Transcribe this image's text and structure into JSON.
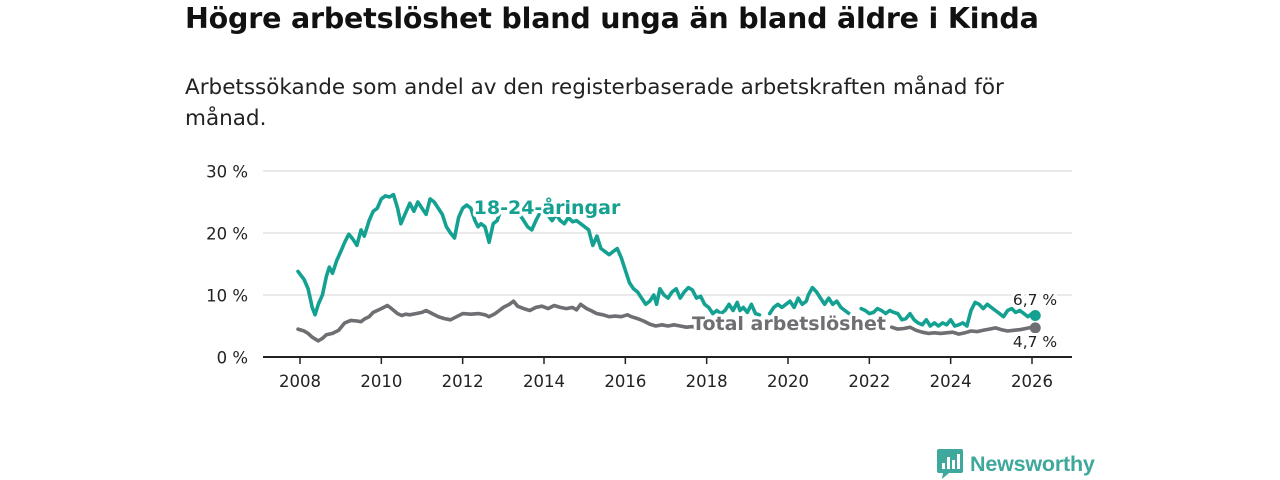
{
  "title": "Högre arbetslöshet bland unga än bland äldre i Kinda",
  "subtitle": "Arbetssökande som andel av den registerbaserade arbetskraften månad för månad.",
  "logo": {
    "text": "Newsworthy",
    "icon": "newsworthy-logo-icon"
  },
  "colors": {
    "youth": "#15a192",
    "total": "#6e6e73",
    "grid": "#dddddd",
    "axis": "#222222",
    "logo": "#3ea89c"
  },
  "chart_data": {
    "type": "line",
    "title": "Högre arbetslöshet bland unga än bland äldre i Kinda",
    "subtitle": "Arbetssökande som andel av den registerbaserade arbetskraften månad för månad.",
    "xlabel": "",
    "ylabel": "",
    "xlim": [
      2007.6,
      2026.6
    ],
    "ylim": [
      0,
      30
    ],
    "x_ticks": [
      2008,
      2010,
      2012,
      2014,
      2016,
      2018,
      2020,
      2022,
      2024,
      2026
    ],
    "x_tick_labels": [
      "2008",
      "2010",
      "2012",
      "2014",
      "2016",
      "2018",
      "2020",
      "2022",
      "2024",
      "2026"
    ],
    "y_ticks": [
      0,
      10,
      20,
      30
    ],
    "y_tick_labels": [
      "0 %",
      "10 %",
      "20 %",
      "30 %"
    ],
    "grid": true,
    "series": [
      {
        "name": "18-24-åringar",
        "label": "18-24-åringar",
        "end_label": "6,7 %",
        "end_value": 6.7,
        "points": [
          [
            2007.95,
            13.8
          ],
          [
            2008.1,
            12.5
          ],
          [
            2008.2,
            11.0
          ],
          [
            2008.3,
            8.0
          ],
          [
            2008.37,
            6.8
          ],
          [
            2008.45,
            8.5
          ],
          [
            2008.55,
            10.0
          ],
          [
            2008.65,
            13.0
          ],
          [
            2008.72,
            14.5
          ],
          [
            2008.8,
            13.5
          ],
          [
            2008.9,
            15.5
          ],
          [
            2009.0,
            17.0
          ],
          [
            2009.1,
            18.5
          ],
          [
            2009.2,
            19.8
          ],
          [
            2009.3,
            19.0
          ],
          [
            2009.4,
            18.0
          ],
          [
            2009.5,
            20.5
          ],
          [
            2009.58,
            19.5
          ],
          [
            2009.7,
            22.0
          ],
          [
            2009.8,
            23.5
          ],
          [
            2009.9,
            24.0
          ],
          [
            2010.0,
            25.5
          ],
          [
            2010.1,
            26.0
          ],
          [
            2010.2,
            25.8
          ],
          [
            2010.3,
            26.2
          ],
          [
            2010.4,
            24.0
          ],
          [
            2010.48,
            21.5
          ],
          [
            2010.58,
            23.0
          ],
          [
            2010.7,
            24.8
          ],
          [
            2010.8,
            23.5
          ],
          [
            2010.9,
            25.0
          ],
          [
            2011.0,
            24.0
          ],
          [
            2011.1,
            23.0
          ],
          [
            2011.2,
            25.5
          ],
          [
            2011.3,
            25.0
          ],
          [
            2011.4,
            24.0
          ],
          [
            2011.5,
            23.0
          ],
          [
            2011.6,
            21.0
          ],
          [
            2011.7,
            20.0
          ],
          [
            2011.8,
            19.2
          ],
          [
            2011.9,
            22.5
          ],
          [
            2012.0,
            24.0
          ],
          [
            2012.1,
            24.5
          ],
          [
            2012.2,
            24.0
          ],
          [
            2012.3,
            22.0
          ],
          [
            2012.38,
            21.0
          ],
          [
            2012.45,
            21.5
          ],
          [
            2012.55,
            21.0
          ],
          [
            2012.65,
            18.5
          ],
          [
            2012.75,
            21.5
          ],
          [
            2012.85,
            22.0
          ],
          [
            2012.9,
            23.0
          ]
        ],
        "points_2": [
          [
            2013.35,
            23.5
          ],
          [
            2013.5,
            22.0
          ],
          [
            2013.6,
            21.0
          ],
          [
            2013.7,
            20.5
          ],
          [
            2013.8,
            22.0
          ],
          [
            2013.88,
            23.0
          ]
        ],
        "points_3": [
          [
            2014.1,
            22.8
          ],
          [
            2014.2,
            22.0
          ],
          [
            2014.3,
            23.0
          ],
          [
            2014.4,
            22.0
          ],
          [
            2014.5,
            21.5
          ],
          [
            2014.6,
            22.5
          ],
          [
            2014.7,
            21.8
          ],
          [
            2014.8,
            22.0
          ],
          [
            2014.9,
            21.5
          ],
          [
            2015.0,
            21.0
          ],
          [
            2015.1,
            20.5
          ],
          [
            2015.2,
            18.0
          ],
          [
            2015.3,
            19.5
          ],
          [
            2015.4,
            17.5
          ],
          [
            2015.5,
            17.0
          ],
          [
            2015.6,
            16.5
          ],
          [
            2015.7,
            17.0
          ],
          [
            2015.8,
            17.5
          ],
          [
            2015.9,
            16.0
          ],
          [
            2016.0,
            14.0
          ],
          [
            2016.1,
            12.0
          ],
          [
            2016.2,
            11.0
          ],
          [
            2016.3,
            10.5
          ],
          [
            2016.4,
            9.5
          ],
          [
            2016.5,
            8.5
          ],
          [
            2016.6,
            9.0
          ],
          [
            2016.7,
            10.0
          ],
          [
            2016.77,
            8.5
          ],
          [
            2016.85,
            11.0
          ],
          [
            2016.95,
            10.0
          ],
          [
            2017.05,
            9.5
          ],
          [
            2017.15,
            10.5
          ],
          [
            2017.25,
            11.0
          ],
          [
            2017.35,
            9.5
          ],
          [
            2017.45,
            10.5
          ],
          [
            2017.55,
            11.2
          ],
          [
            2017.65,
            10.8
          ],
          [
            2017.75,
            9.5
          ],
          [
            2017.85,
            9.8
          ],
          [
            2017.95,
            8.5
          ],
          [
            2018.05,
            8.0
          ],
          [
            2018.15,
            7.0
          ],
          [
            2018.25,
            7.5
          ],
          [
            2018.35,
            7.0
          ],
          [
            2018.45,
            7.5
          ],
          [
            2018.55,
            8.5
          ],
          [
            2018.65,
            7.5
          ],
          [
            2018.75,
            8.8
          ],
          [
            2018.82,
            7.5
          ],
          [
            2018.9,
            8.0
          ],
          [
            2019.0,
            7.2
          ],
          [
            2019.1,
            8.5
          ],
          [
            2019.2,
            7.0
          ],
          [
            2019.3,
            6.8
          ]
        ],
        "points_4": [
          [
            2019.55,
            7.0
          ],
          [
            2019.65,
            8.0
          ],
          [
            2019.75,
            8.5
          ],
          [
            2019.85,
            8.0
          ],
          [
            2019.95,
            8.5
          ],
          [
            2020.05,
            9.0
          ],
          [
            2020.15,
            8.0
          ],
          [
            2020.25,
            9.5
          ],
          [
            2020.35,
            8.5
          ],
          [
            2020.45,
            9.0
          ],
          [
            2020.5,
            10.0
          ],
          [
            2020.6,
            11.2
          ],
          [
            2020.7,
            10.5
          ],
          [
            2020.8,
            9.5
          ],
          [
            2020.9,
            8.5
          ],
          [
            2021.0,
            9.5
          ],
          [
            2021.1,
            8.5
          ],
          [
            2021.2,
            9.0
          ],
          [
            2021.3,
            8.0
          ],
          [
            2021.4,
            7.5
          ],
          [
            2021.5,
            7.0
          ]
        ],
        "points_5": [
          [
            2021.8,
            7.8
          ],
          [
            2021.9,
            7.5
          ],
          [
            2022.0,
            7.0
          ],
          [
            2022.1,
            7.2
          ],
          [
            2022.2,
            7.8
          ],
          [
            2022.3,
            7.5
          ],
          [
            2022.4,
            7.0
          ],
          [
            2022.5,
            7.5
          ],
          [
            2022.6,
            7.2
          ],
          [
            2022.7,
            7.0
          ],
          [
            2022.8,
            6.0
          ],
          [
            2022.9,
            6.2
          ],
          [
            2023.0,
            7.0
          ],
          [
            2023.1,
            6.0
          ],
          [
            2023.2,
            5.5
          ],
          [
            2023.3,
            5.2
          ],
          [
            2023.4,
            6.0
          ],
          [
            2023.5,
            5.0
          ],
          [
            2023.6,
            5.5
          ],
          [
            2023.7,
            5.0
          ],
          [
            2023.8,
            5.5
          ],
          [
            2023.9,
            5.2
          ],
          [
            2024.0,
            6.0
          ],
          [
            2024.1,
            5.0
          ],
          [
            2024.2,
            5.2
          ],
          [
            2024.3,
            5.5
          ],
          [
            2024.4,
            5.0
          ],
          [
            2024.5,
            7.5
          ],
          [
            2024.6,
            8.8
          ],
          [
            2024.7,
            8.5
          ],
          [
            2024.8,
            7.8
          ],
          [
            2024.9,
            8.5
          ],
          [
            2025.0,
            8.0
          ],
          [
            2025.1,
            7.5
          ],
          [
            2025.2,
            7.0
          ],
          [
            2025.3,
            6.5
          ],
          [
            2025.4,
            7.5
          ],
          [
            2025.5,
            7.8
          ],
          [
            2025.6,
            7.2
          ],
          [
            2025.7,
            7.5
          ],
          [
            2025.8,
            7.0
          ],
          [
            2025.9,
            6.5
          ],
          [
            2026.0,
            7.0
          ],
          [
            2026.08,
            6.7
          ]
        ]
      },
      {
        "name": "Total arbetslöshet",
        "label": "Total arbetslöshet",
        "end_label": "4,7 %",
        "end_value": 4.7,
        "points": [
          [
            2007.95,
            4.5
          ],
          [
            2008.1,
            4.2
          ],
          [
            2008.2,
            3.8
          ],
          [
            2008.3,
            3.2
          ],
          [
            2008.45,
            2.6
          ],
          [
            2008.55,
            3.0
          ],
          [
            2008.65,
            3.6
          ],
          [
            2008.8,
            3.8
          ],
          [
            2008.95,
            4.3
          ],
          [
            2009.1,
            5.5
          ],
          [
            2009.25,
            5.9
          ],
          [
            2009.4,
            5.8
          ],
          [
            2009.5,
            5.7
          ],
          [
            2009.6,
            6.2
          ],
          [
            2009.7,
            6.5
          ],
          [
            2009.8,
            7.2
          ],
          [
            2009.9,
            7.5
          ],
          [
            2010.0,
            7.8
          ],
          [
            2010.15,
            8.3
          ],
          [
            2010.25,
            7.8
          ],
          [
            2010.4,
            7.0
          ],
          [
            2010.5,
            6.7
          ],
          [
            2010.6,
            6.9
          ],
          [
            2010.7,
            6.8
          ],
          [
            2010.85,
            7.0
          ],
          [
            2011.0,
            7.2
          ],
          [
            2011.1,
            7.5
          ],
          [
            2011.25,
            7.0
          ],
          [
            2011.4,
            6.5
          ],
          [
            2011.55,
            6.2
          ],
          [
            2011.7,
            6.0
          ],
          [
            2011.85,
            6.5
          ],
          [
            2012.0,
            7.0
          ],
          [
            2012.2,
            6.9
          ],
          [
            2012.4,
            7.0
          ],
          [
            2012.55,
            6.8
          ],
          [
            2012.65,
            6.5
          ],
          [
            2012.8,
            7.0
          ],
          [
            2012.9,
            7.5
          ],
          [
            2013.0,
            8.0
          ],
          [
            2013.15,
            8.5
          ],
          [
            2013.25,
            9.0
          ],
          [
            2013.35,
            8.2
          ],
          [
            2013.5,
            7.8
          ],
          [
            2013.65,
            7.5
          ],
          [
            2013.8,
            8.0
          ],
          [
            2013.95,
            8.2
          ],
          [
            2014.1,
            7.8
          ],
          [
            2014.25,
            8.3
          ],
          [
            2014.4,
            8.0
          ],
          [
            2014.55,
            7.8
          ],
          [
            2014.7,
            8.0
          ],
          [
            2014.8,
            7.6
          ],
          [
            2014.9,
            8.5
          ],
          [
            2015.05,
            7.8
          ],
          [
            2015.15,
            7.5
          ],
          [
            2015.3,
            7.0
          ],
          [
            2015.45,
            6.8
          ],
          [
            2015.6,
            6.5
          ],
          [
            2015.75,
            6.6
          ],
          [
            2015.9,
            6.5
          ],
          [
            2016.05,
            6.8
          ],
          [
            2016.15,
            6.5
          ],
          [
            2016.3,
            6.2
          ],
          [
            2016.45,
            5.8
          ],
          [
            2016.6,
            5.3
          ],
          [
            2016.75,
            5.0
          ],
          [
            2016.9,
            5.2
          ],
          [
            2017.05,
            5.0
          ],
          [
            2017.2,
            5.2
          ],
          [
            2017.35,
            5.0
          ],
          [
            2017.5,
            4.8
          ],
          [
            2017.65,
            4.9
          ],
          [
            2017.75,
            4.7
          ]
        ],
        "points_2": [
          [
            2022.55,
            4.8
          ],
          [
            2022.7,
            4.5
          ],
          [
            2022.85,
            4.6
          ],
          [
            2023.0,
            4.8
          ],
          [
            2023.15,
            4.3
          ],
          [
            2023.3,
            4.0
          ],
          [
            2023.45,
            3.8
          ],
          [
            2023.6,
            3.9
          ],
          [
            2023.75,
            3.8
          ],
          [
            2023.9,
            3.9
          ],
          [
            2024.05,
            4.0
          ],
          [
            2024.2,
            3.7
          ],
          [
            2024.35,
            3.9
          ],
          [
            2024.5,
            4.2
          ],
          [
            2024.65,
            4.1
          ],
          [
            2024.8,
            4.3
          ],
          [
            2024.95,
            4.5
          ],
          [
            2025.1,
            4.7
          ],
          [
            2025.25,
            4.4
          ],
          [
            2025.4,
            4.2
          ],
          [
            2025.55,
            4.3
          ],
          [
            2025.7,
            4.4
          ],
          [
            2025.85,
            4.6
          ],
          [
            2026.0,
            4.8
          ],
          [
            2026.08,
            4.7
          ]
        ]
      }
    ]
  }
}
